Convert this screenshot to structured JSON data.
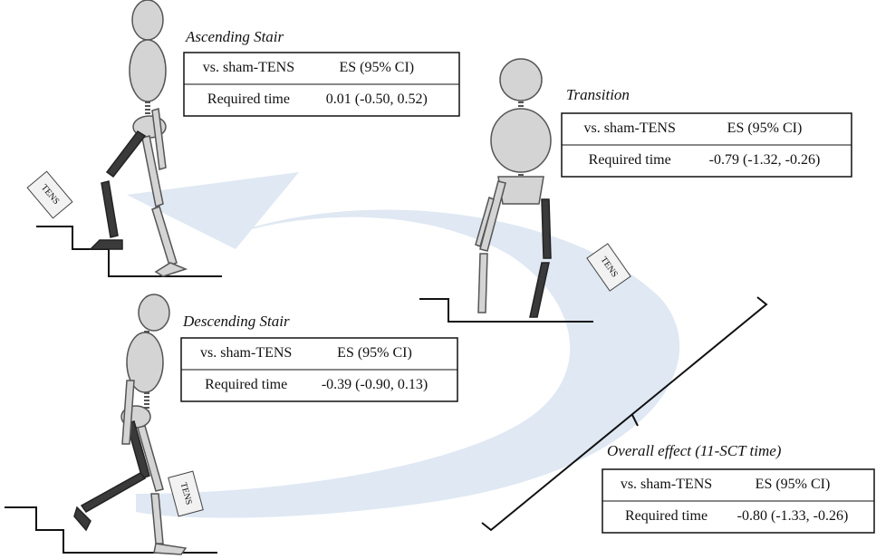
{
  "panels": [
    {
      "title": "Ascending Stair",
      "table": {
        "header": [
          "vs. sham-TENS",
          "ES (95% CI)"
        ],
        "rows": [
          [
            "Required time",
            "0.01 (-0.50, 0.52)"
          ]
        ]
      }
    },
    {
      "title": "Transition",
      "table": {
        "header": [
          "vs. sham-TENS",
          "ES (95% CI)"
        ],
        "rows": [
          [
            "Required time",
            "-0.79 (-1.32, -0.26)"
          ]
        ]
      }
    },
    {
      "title": "Descending Stair",
      "table": {
        "header": [
          "vs. sham-TENS",
          "ES (95% CI)"
        ],
        "rows": [
          [
            "Required time",
            "-0.39 (-0.90, 0.13)"
          ]
        ]
      }
    },
    {
      "title": "Overall effect (11-SCT time)",
      "table": {
        "header": [
          "vs. sham-TENS",
          "ES (95% CI)"
        ],
        "rows": [
          [
            "Required time",
            "-0.80 (-1.33, -0.26)"
          ]
        ]
      }
    }
  ],
  "device_labels": [
    "TENS",
    "TENS",
    "TENS"
  ]
}
